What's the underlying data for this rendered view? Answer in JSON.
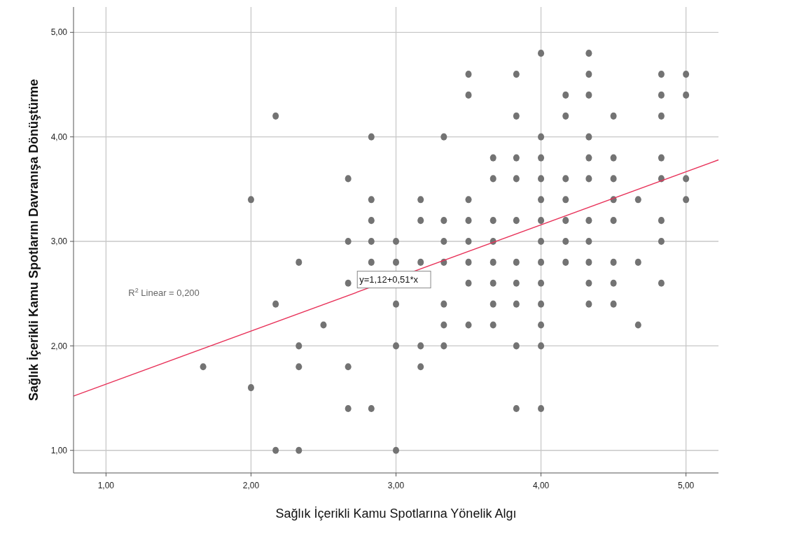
{
  "chart_data": {
    "type": "scatter",
    "xlabel": "Sağlık İçerikli Kamu Spotlarına Yönelik Algı",
    "ylabel": "Sağlık İçerikli Kamu Spotlarını Davranışa Dönüştürme",
    "xlim": [
      0.776,
      5.224
    ],
    "ylim": [
      0.784,
      5.243
    ],
    "xticks": [
      {
        "value": 1,
        "label": "1,00"
      },
      {
        "value": 2,
        "label": "2,00"
      },
      {
        "value": 3,
        "label": "3,00"
      },
      {
        "value": 4,
        "label": "4,00"
      },
      {
        "value": 5,
        "label": "5,00"
      }
    ],
    "yticks": [
      {
        "value": 1,
        "label": "1,00"
      },
      {
        "value": 2,
        "label": "2,00"
      },
      {
        "value": 3,
        "label": "3,00"
      },
      {
        "value": 4,
        "label": "4,00"
      },
      {
        "value": 5,
        "label": "5,00"
      }
    ],
    "grid": true,
    "marker": "circle",
    "series": [
      {
        "color": "#737373",
        "x": [
          1.67,
          2,
          2,
          2.17,
          2.17,
          2.17,
          2.33,
          2.33,
          2.33,
          2.33,
          2.5,
          2.67,
          2.67,
          2.67,
          2.67,
          2.67,
          2.83,
          2.83,
          2.83,
          2.83,
          2.83,
          2.83,
          3,
          3,
          3,
          3,
          3,
          3.17,
          3.17,
          3.17,
          3.17,
          3.17,
          3.33,
          3.33,
          3.33,
          3.33,
          3.33,
          3.33,
          3.33,
          3.5,
          3.5,
          3.5,
          3.5,
          3.5,
          3.5,
          3.5,
          3.5,
          3.67,
          3.67,
          3.67,
          3.67,
          3.67,
          3.67,
          3.67,
          3.67,
          3.83,
          3.83,
          3.83,
          3.83,
          3.83,
          3.83,
          3.83,
          3.83,
          3.83,
          3.83,
          4,
          4,
          4,
          4,
          4,
          4,
          4,
          4,
          4,
          4,
          4,
          4,
          4,
          4.17,
          4.17,
          4.17,
          4.17,
          4.17,
          4.17,
          4.17,
          4.33,
          4.33,
          4.33,
          4.33,
          4.33,
          4.33,
          4.33,
          4.33,
          4.33,
          4.33,
          4.33,
          4.5,
          4.5,
          4.5,
          4.5,
          4.5,
          4.5,
          4.5,
          4.5,
          4.67,
          4.67,
          4.67,
          4.83,
          4.83,
          4.83,
          4.83,
          4.83,
          4.83,
          4.83,
          4.83,
          5,
          5,
          5,
          5
        ],
        "values": [
          1.8,
          3.4,
          1.6,
          4.2,
          2.4,
          1.0,
          2.8,
          2.0,
          1.8,
          1.0,
          2.2,
          3.6,
          3.0,
          2.6,
          1.8,
          1.4,
          4.0,
          3.4,
          3.2,
          3.0,
          2.8,
          1.4,
          3.0,
          2.8,
          2.4,
          2.0,
          1.0,
          3.4,
          3.2,
          2.8,
          2.0,
          1.8,
          4.0,
          3.2,
          3.0,
          2.8,
          2.4,
          2.2,
          2.0,
          4.6,
          4.4,
          3.4,
          3.2,
          3.0,
          2.8,
          2.6,
          2.2,
          3.8,
          3.6,
          3.2,
          3.0,
          2.8,
          2.6,
          2.4,
          2.2,
          4.6,
          4.2,
          3.8,
          3.6,
          3.2,
          2.8,
          2.6,
          2.4,
          2.0,
          1.4,
          4.8,
          4.0,
          3.8,
          3.6,
          3.4,
          3.2,
          3.0,
          2.8,
          2.6,
          2.4,
          2.2,
          2.0,
          1.4,
          4.4,
          4.2,
          3.6,
          3.4,
          3.2,
          3.0,
          2.8,
          4.8,
          4.6,
          4.4,
          4.0,
          3.8,
          3.6,
          3.2,
          3.0,
          2.8,
          2.6,
          2.4,
          4.2,
          3.8,
          3.6,
          3.4,
          3.2,
          2.8,
          2.6,
          2.4,
          3.4,
          2.8,
          2.2,
          4.6,
          4.4,
          4.2,
          3.8,
          3.6,
          3.2,
          3.0,
          2.6,
          4.6,
          4.4,
          3.6,
          3.4
        ]
      },
      {
        "type": "line",
        "marker": "none",
        "color": "#e8335a",
        "x": [
          0.776,
          5.224
        ],
        "values": [
          1.52,
          3.78
        ]
      }
    ],
    "annotations": [
      "y=1,12+0,51*x",
      "R$^{2}$ Linear = 0,200"
    ]
  }
}
